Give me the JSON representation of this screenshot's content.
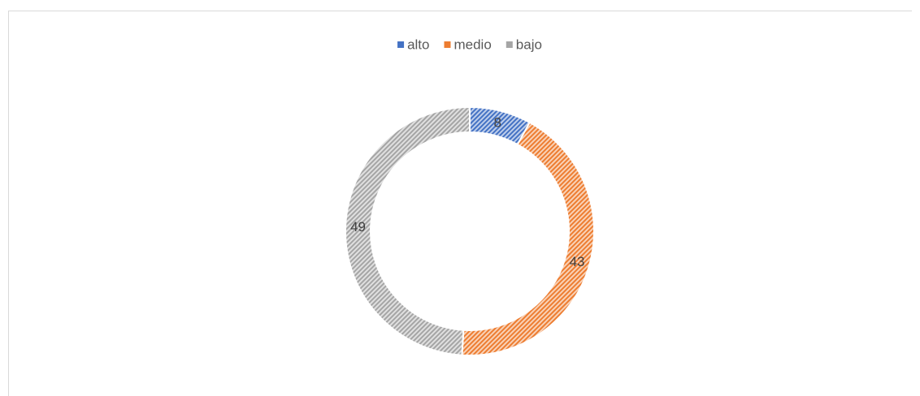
{
  "chart_data": {
    "type": "donut",
    "categories": [
      "alto",
      "medio",
      "bajo"
    ],
    "values": [
      8,
      43,
      49
    ],
    "colors": [
      "#4472c4",
      "#ed7d31",
      "#a5a5a5"
    ],
    "legend": "top"
  }
}
